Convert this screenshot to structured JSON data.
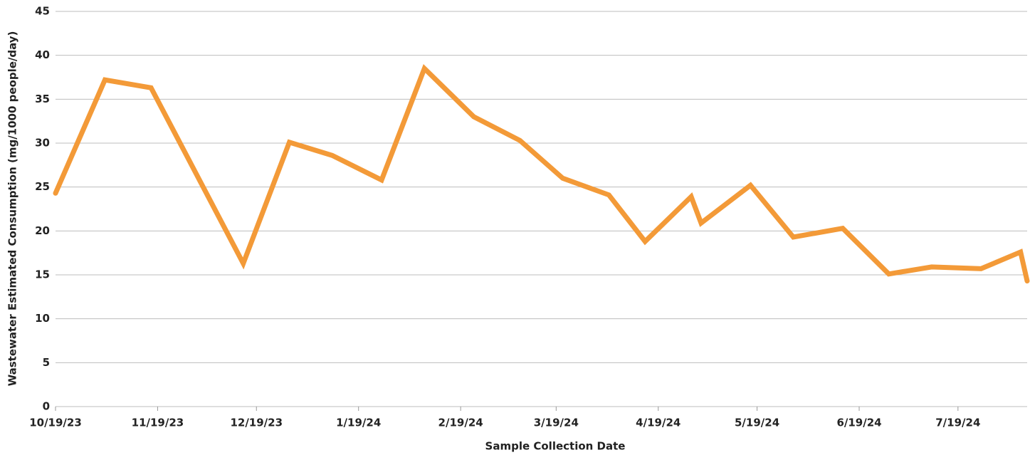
{
  "chart_data": {
    "type": "line",
    "x_label": "Sample Collection Date",
    "y_label": "Wastewater Estimated Consumption (mg/1000 people/day)",
    "x": [
      "2023-10-19",
      "2023-11-03",
      "2023-11-17",
      "2023-12-15",
      "2023-12-29",
      "2024-01-11",
      "2024-01-26",
      "2024-02-08",
      "2024-02-23",
      "2024-03-08",
      "2024-03-21",
      "2024-04-04",
      "2024-04-15",
      "2024-04-29",
      "2024-05-02",
      "2024-05-17",
      "2024-05-30",
      "2024-06-14",
      "2024-06-28",
      "2024-07-11",
      "2024-07-26",
      "2024-08-07",
      "2024-08-09"
    ],
    "values": [
      24.3,
      37.2,
      36.3,
      16.3,
      30.1,
      28.6,
      25.8,
      38.5,
      33.0,
      30.3,
      26.0,
      24.1,
      18.8,
      23.9,
      20.9,
      25.2,
      19.3,
      20.3,
      15.1,
      15.9,
      15.7,
      17.6,
      14.3
    ],
    "color": "#f39a38",
    "xlim": [
      "2023-10-19",
      "2024-08-09"
    ],
    "xticks": [
      {
        "value": "2023-10-19",
        "label": "10/19/23"
      },
      {
        "value": "2023-11-19",
        "label": "11/19/23"
      },
      {
        "value": "2023-12-19",
        "label": "12/19/23"
      },
      {
        "value": "2024-01-19",
        "label": "1/19/24"
      },
      {
        "value": "2024-02-19",
        "label": "2/19/24"
      },
      {
        "value": "2024-03-19",
        "label": "3/19/24"
      },
      {
        "value": "2024-04-19",
        "label": "4/19/24"
      },
      {
        "value": "2024-05-19",
        "label": "5/19/24"
      },
      {
        "value": "2024-06-19",
        "label": "6/19/24"
      },
      {
        "value": "2024-07-19",
        "label": "7/19/24"
      }
    ],
    "ylim": [
      0,
      45
    ],
    "yticks": [
      0,
      5,
      10,
      15,
      20,
      25,
      30,
      35,
      40,
      45
    ],
    "grid": true
  }
}
